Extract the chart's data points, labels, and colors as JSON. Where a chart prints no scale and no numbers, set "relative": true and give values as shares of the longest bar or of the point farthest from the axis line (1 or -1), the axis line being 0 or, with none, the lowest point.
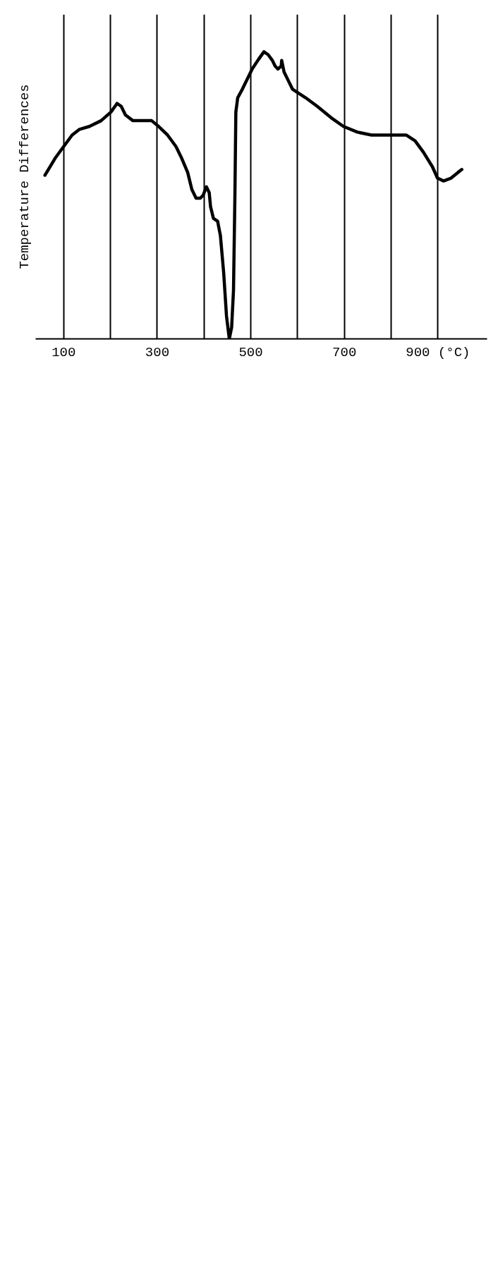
{
  "chart_data": {
    "type": "line",
    "relative": true,
    "ylabel": "Temperature Differences",
    "x": [
      60,
      82,
      100,
      118,
      134,
      155,
      180,
      201,
      214,
      223,
      232,
      248,
      266,
      288,
      303,
      322,
      340,
      352,
      365,
      374,
      383,
      392,
      398,
      405,
      411,
      414,
      420,
      429,
      435,
      442,
      448,
      454,
      459,
      463,
      466,
      468,
      472,
      482,
      494,
      503,
      515,
      528,
      537,
      546,
      552,
      558,
      565,
      566,
      571,
      580,
      589,
      598,
      617,
      642,
      672,
      698,
      728,
      758,
      798,
      832,
      851,
      869,
      888,
      899,
      912,
      928,
      943,
      951
    ],
    "series": [
      {
        "color": "#000000",
        "values": [
          0.57,
          0.63,
          0.67,
          0.71,
          0.73,
          0.74,
          0.76,
          0.79,
          0.82,
          0.81,
          0.78,
          0.76,
          0.76,
          0.76,
          0.74,
          0.71,
          0.67,
          0.63,
          0.58,
          0.52,
          0.49,
          0.49,
          0.5,
          0.53,
          0.51,
          0.46,
          0.42,
          0.41,
          0.36,
          0.23,
          0.08,
          0,
          0.04,
          0.17,
          0.5,
          0.79,
          0.84,
          0.87,
          0.91,
          0.94,
          0.97,
          1.0,
          0.99,
          0.97,
          0.95,
          0.94,
          0.95,
          0.97,
          0.93,
          0.9,
          0.87,
          0.86,
          0.84,
          0.81,
          0.77,
          0.74,
          0.72,
          0.71,
          0.71,
          0.71,
          0.69,
          0.65,
          0.6,
          0.56,
          0.55,
          0.56,
          0.58,
          0.59
        ]
      }
    ],
    "xlim": [
      40,
      1005
    ],
    "xticks": [
      {
        "value": 100,
        "label": "100"
      },
      {
        "value": 200,
        "label": null
      },
      {
        "value": 300,
        "label": "300"
      },
      {
        "value": 400,
        "label": null
      },
      {
        "value": 500,
        "label": "500"
      },
      {
        "value": 600,
        "label": null
      },
      {
        "value": 700,
        "label": "700"
      },
      {
        "value": 800,
        "label": null
      },
      {
        "value": 900,
        "label": "900 (°C)"
      }
    ],
    "grid": "x",
    "tick_labels": "x"
  }
}
